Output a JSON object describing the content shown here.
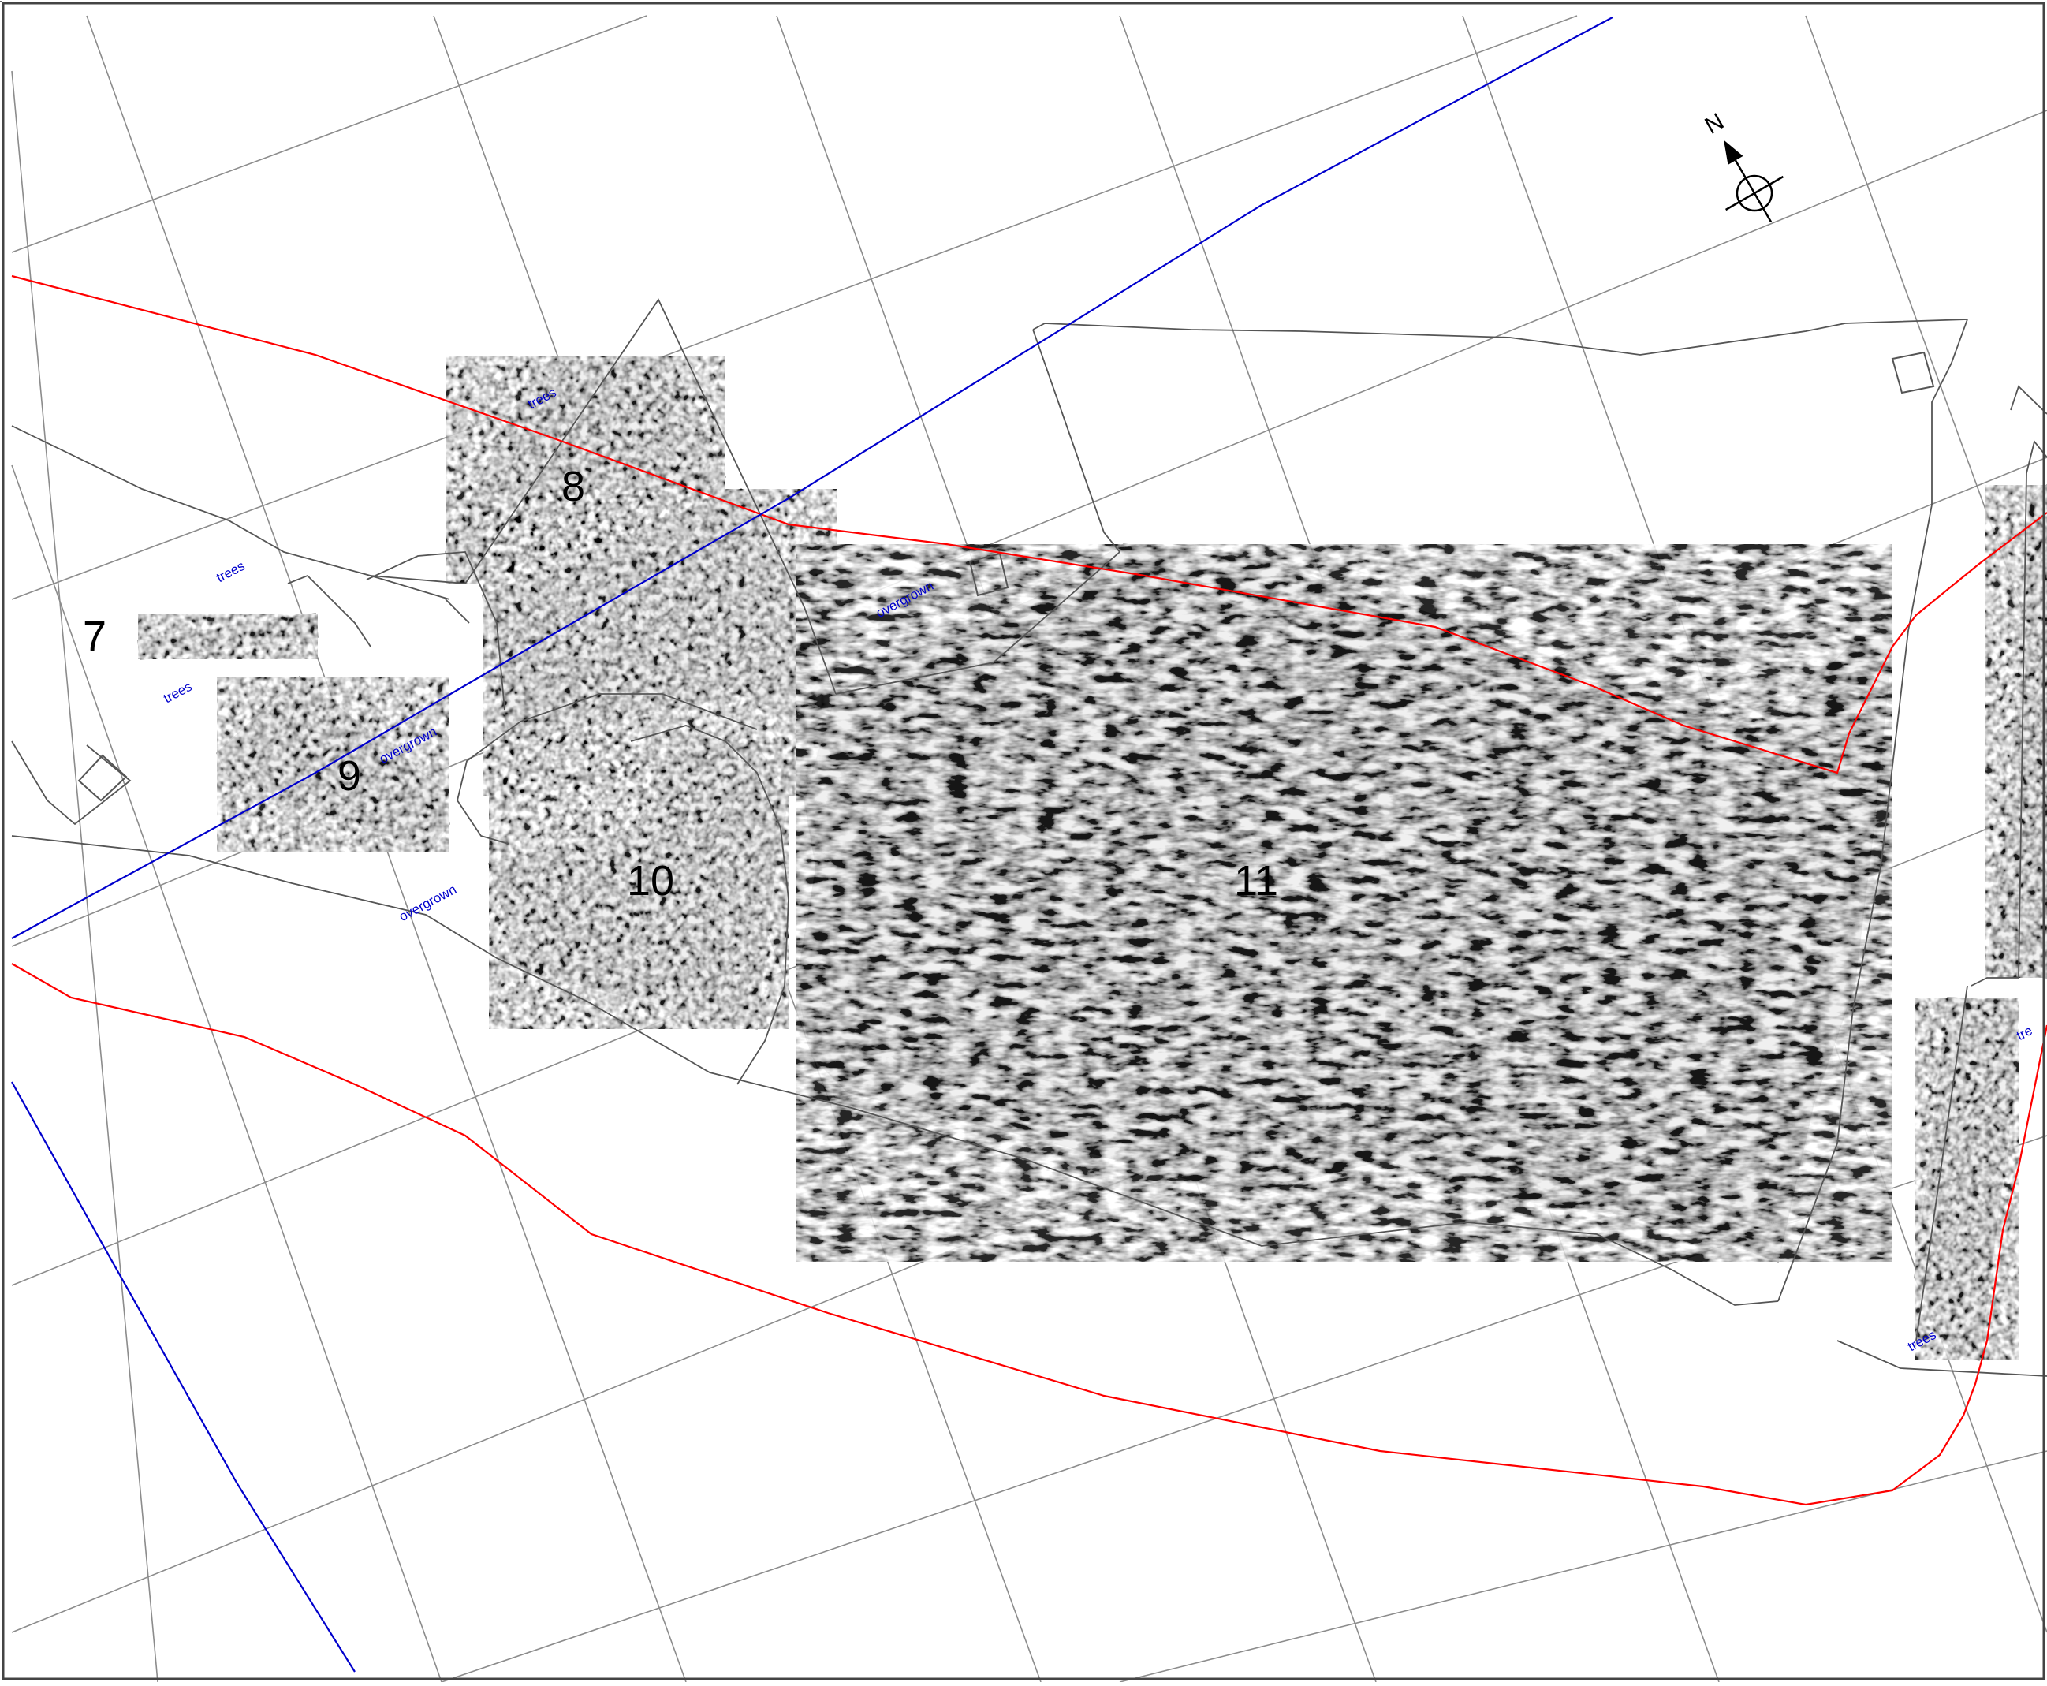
{
  "map": {
    "north_label": "N",
    "colors": {
      "grid": "#8c8c8c",
      "boundary": "#555555",
      "red_line": "#ff0000",
      "blue_line": "#0000cc",
      "note_text": "#0000cc",
      "label_text": "#000000",
      "survey_mid": "#9a9a9a",
      "survey_dark": "#141414"
    },
    "area_labels": [
      {
        "id": "7",
        "text": "7"
      },
      {
        "id": "8",
        "text": "8"
      },
      {
        "id": "9",
        "text": "9"
      },
      {
        "id": "10",
        "text": "10"
      },
      {
        "id": "11",
        "text": "11"
      }
    ],
    "annotations": [
      {
        "id": "trees-1",
        "text": "trees"
      },
      {
        "id": "trees-2",
        "text": "trees"
      },
      {
        "id": "trees-3",
        "text": "trees"
      },
      {
        "id": "trees-4",
        "text": "trees"
      },
      {
        "id": "trees-5",
        "text": "tre"
      },
      {
        "id": "overgrown-1",
        "text": "overgrown"
      },
      {
        "id": "overgrown-2",
        "text": "overgrown"
      },
      {
        "id": "overgrown-3",
        "text": "overgrown"
      }
    ]
  }
}
